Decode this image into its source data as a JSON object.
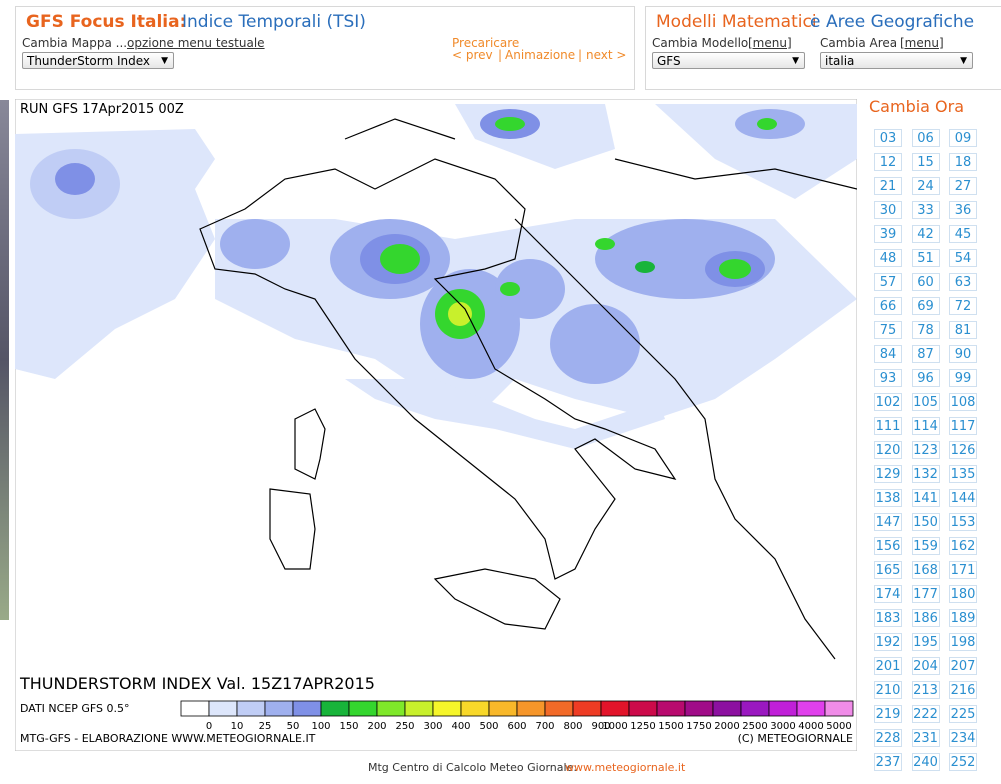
{
  "header": {
    "title_bold": "GFS Focus Italia:",
    "title_rest": "Indice Temporali (TSI)",
    "map_label": "Cambia Mappa ...",
    "text_menu": "opzione menu testuale",
    "map_select": "ThunderStorm Index",
    "preload": "Precaricare",
    "prev": "< prev",
    "sep": "|",
    "animation": "Animazione",
    "next": "next >"
  },
  "models": {
    "title_a": "Modelli Matematici",
    "title_and": "e",
    "title_b": "Aree Geografiche",
    "model_label": "Cambia Modello",
    "model_menu": "[menu]",
    "model_select": "GFS",
    "area_label": "Cambia Area",
    "area_menu": "[menu]",
    "area_select": "italia"
  },
  "map": {
    "run": "RUN GFS 17Apr2015 00Z",
    "title": "THUNDERSTORM INDEX Val. 15Z17APR2015",
    "source": "DATI NCEP GFS 0.5°",
    "credit": "MTG-GFS - ELABORAZIONE WWW.METEOGIORNALE.IT",
    "copyright": "(C) METEOGIORNALE",
    "legend": {
      "labels": [
        "0",
        "10",
        "25",
        "50",
        "100",
        "150",
        "200",
        "250",
        "300",
        "400",
        "500",
        "600",
        "700",
        "800",
        "900",
        "1000",
        "1250",
        "1500",
        "1750",
        "2000",
        "2500",
        "3000",
        "4000",
        "5000"
      ],
      "colors": [
        "#ffffff",
        "#dde6fb",
        "#c0cdf5",
        "#9fb0ee",
        "#7f90e6",
        "#18b43a",
        "#34d62e",
        "#7fe82a",
        "#c8f02c",
        "#f6f62a",
        "#f8d82a",
        "#f8b82a",
        "#f6962a",
        "#f26a28",
        "#ee3c24",
        "#e2142a",
        "#cc0a4a",
        "#b80a6e",
        "#a00c88",
        "#8c10a0",
        "#9a18c0",
        "#c020d8",
        "#e040ec",
        "#f08ce8"
      ]
    }
  },
  "hours": {
    "title": "Cambia Ora",
    "items": [
      "03",
      "06",
      "09",
      "12",
      "15",
      "18",
      "21",
      "24",
      "27",
      "30",
      "33",
      "36",
      "39",
      "42",
      "45",
      "48",
      "51",
      "54",
      "57",
      "60",
      "63",
      "66",
      "69",
      "72",
      "75",
      "78",
      "81",
      "84",
      "87",
      "90",
      "93",
      "96",
      "99",
      "102",
      "105",
      "108",
      "111",
      "114",
      "117",
      "120",
      "123",
      "126",
      "129",
      "132",
      "135",
      "138",
      "141",
      "144",
      "147",
      "150",
      "153",
      "156",
      "159",
      "162",
      "165",
      "168",
      "171",
      "174",
      "177",
      "180",
      "183",
      "186",
      "189",
      "192",
      "195",
      "198",
      "201",
      "204",
      "207",
      "210",
      "213",
      "216",
      "219",
      "222",
      "225",
      "228",
      "231",
      "234",
      "237",
      "240",
      "252"
    ]
  },
  "footer": {
    "text": "Mtg Centro di Calcolo Meteo Giornale:",
    "link": "www.meteogiornale.it"
  }
}
